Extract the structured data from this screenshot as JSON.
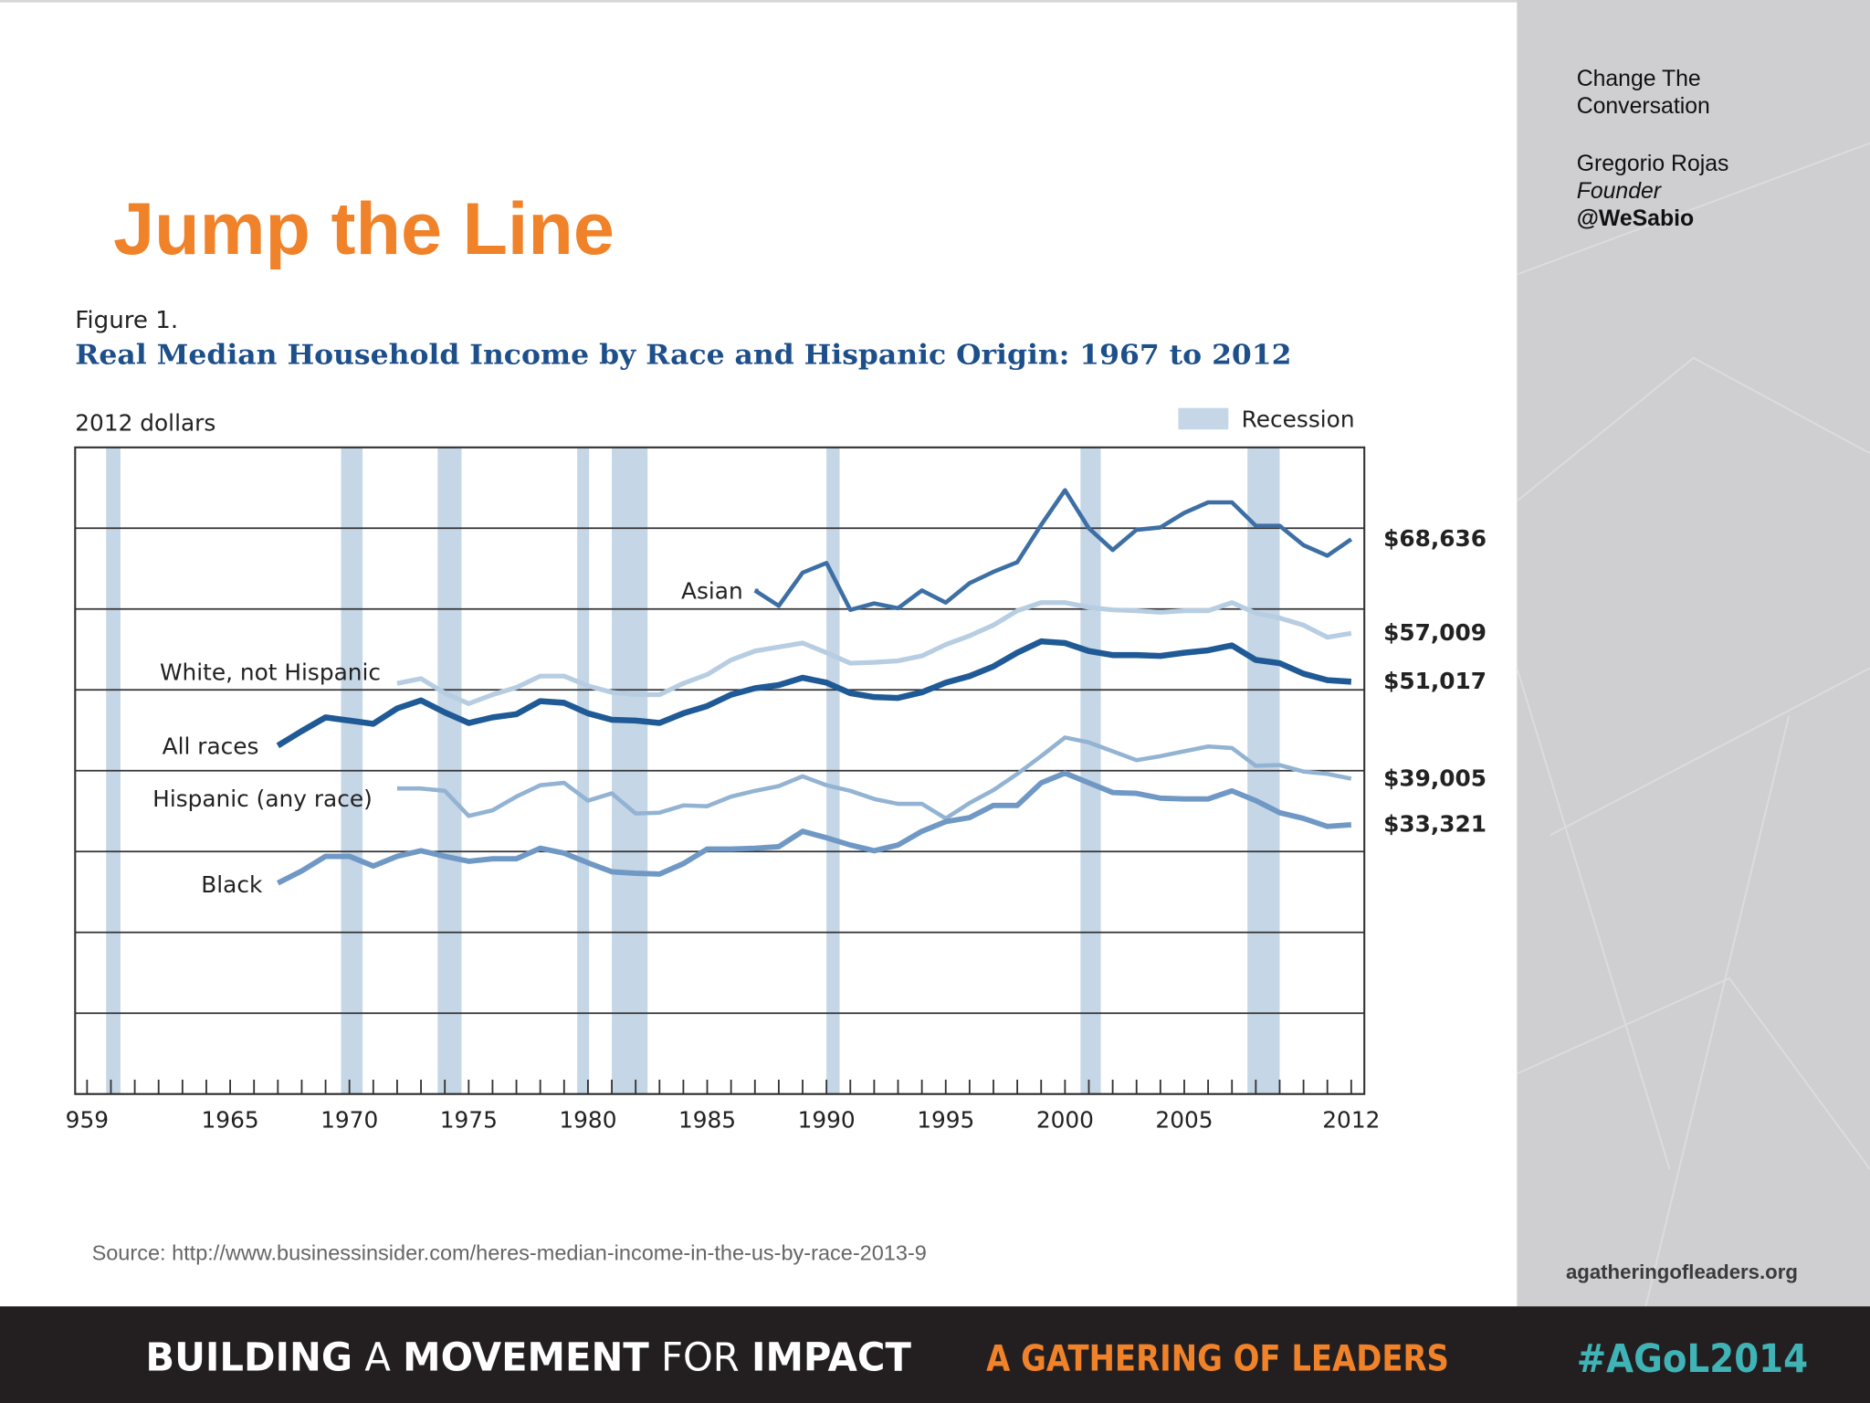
{
  "slide": {
    "title": "Jump the Line",
    "source": "Source: http://www.businessinsider.com/heres-median-income-in-the-us-by-race-2013-9"
  },
  "sidebar": {
    "org": [
      "Change The",
      "Conversation"
    ],
    "name": "Gregorio Rojas",
    "role": "Founder",
    "handle": "@WeSabio",
    "site": "agatheringofleaders.org"
  },
  "footer": {
    "tagline": [
      "BUILDING",
      "A",
      "MOVEMENT",
      "FOR",
      "IMPACT"
    ],
    "event": "A GATHERING OF LEADERS",
    "hashtag": "#AGoL2014"
  },
  "chart_data": {
    "type": "line",
    "figure_label": "Figure 1.",
    "title": "Real Median Household Income by Race and Hispanic Origin: 1967 to 2012",
    "y_label": "2012 dollars",
    "legend": {
      "recession": "Recession",
      "color": "#c5d6e6"
    },
    "recessions": [
      [
        1959.8,
        1960.4
      ],
      [
        1969.65,
        1970.55
      ],
      [
        1973.7,
        1974.7
      ],
      [
        1979.55,
        1980.05
      ],
      [
        1981.0,
        1982.5
      ],
      [
        1990.0,
        1990.55
      ],
      [
        2000.65,
        2001.5
      ],
      [
        2007.65,
        2009.0
      ]
    ],
    "x": [
      1967,
      1968,
      1969,
      1970,
      1971,
      1972,
      1973,
      1974,
      1975,
      1976,
      1977,
      1978,
      1979,
      1980,
      1981,
      1982,
      1983,
      1984,
      1985,
      1986,
      1987,
      1988,
      1989,
      1990,
      1991,
      1992,
      1993,
      1994,
      1995,
      1996,
      1997,
      1998,
      1999,
      2000,
      2001,
      2002,
      2003,
      2004,
      2005,
      2006,
      2007,
      2008,
      2009,
      2010,
      2011,
      2012
    ],
    "xlim": [
      1958.5,
      2012.55
    ],
    "xticks": [
      {
        "value": 1959,
        "label": "959"
      },
      1965,
      1970,
      1975,
      1980,
      1985,
      1990,
      1995,
      2000,
      2005,
      2012
    ],
    "xminorticks": [
      1959,
      1960,
      1961,
      1962,
      1963,
      1964,
      1965,
      1966,
      1967,
      1968,
      1969,
      1970,
      1971,
      1972,
      1973,
      1974,
      1975,
      1976,
      1977,
      1978,
      1979,
      1980,
      1981,
      1982,
      1983,
      1984,
      1985,
      1986,
      1987,
      1988,
      1989,
      1990,
      1991,
      1992,
      1993,
      1994,
      1995,
      1996,
      1997,
      1998,
      1999,
      2000,
      2001,
      2002,
      2003,
      2004,
      2005,
      2006,
      2007,
      2008,
      2009,
      2010,
      2011,
      2012
    ],
    "ylim": [
      0,
      80000
    ],
    "yticks": [
      0,
      10000,
      20000,
      30000,
      40000,
      50000,
      60000,
      70000,
      80000
    ],
    "grid": true,
    "series": [
      {
        "name": "Asian",
        "color": "#3d6fa5",
        "end_label": "$68,636",
        "values": [
          null,
          null,
          null,
          null,
          null,
          null,
          null,
          null,
          null,
          null,
          null,
          null,
          null,
          null,
          null,
          null,
          null,
          null,
          null,
          null,
          62300,
          60400,
          64500,
          65700,
          59900,
          60700,
          60100,
          62300,
          60800,
          63200,
          64600,
          65800,
          70400,
          74700,
          70000,
          67300,
          69800,
          70100,
          71900,
          73200,
          73200,
          70300,
          70300,
          67900,
          66600,
          68636
        ]
      },
      {
        "name": "White, not Hispanic",
        "color": "#b7cde2",
        "end_label": "$57,009",
        "values": [
          null,
          null,
          null,
          null,
          null,
          50800,
          51400,
          49600,
          48300,
          49400,
          50300,
          51700,
          51700,
          50500,
          49700,
          49400,
          49400,
          50800,
          51900,
          53700,
          54800,
          55300,
          55800,
          54600,
          53300,
          53400,
          53600,
          54200,
          55600,
          56700,
          58000,
          59800,
          60800,
          60800,
          60200,
          59900,
          59800,
          59600,
          59800,
          59800,
          60800,
          59500,
          58900,
          58000,
          56500,
          57009
        ]
      },
      {
        "name": "All races",
        "color": "#1f5a96",
        "end_label": "$51,017",
        "values": [
          43100,
          44900,
          46600,
          46200,
          45800,
          47700,
          48700,
          47200,
          45900,
          46600,
          47000,
          48600,
          48400,
          47100,
          46300,
          46200,
          45900,
          47100,
          48000,
          49400,
          50200,
          50600,
          51500,
          50900,
          49600,
          49100,
          49000,
          49700,
          50900,
          51700,
          52900,
          54600,
          56000,
          55800,
          54800,
          54300,
          54300,
          54200,
          54600,
          54900,
          55500,
          53700,
          53300,
          52000,
          51200,
          51017
        ]
      },
      {
        "name": "Hispanic (any race)",
        "color": "#93b3d3",
        "end_label": "$39,005",
        "values": [
          null,
          null,
          null,
          null,
          null,
          37800,
          37800,
          37500,
          34400,
          35100,
          36800,
          38200,
          38500,
          36300,
          37200,
          34700,
          34800,
          35700,
          35600,
          36800,
          37500,
          38100,
          39300,
          38200,
          37500,
          36500,
          35900,
          35900,
          34100,
          36000,
          37600,
          39600,
          41800,
          44100,
          43500,
          42400,
          41300,
          41800,
          42400,
          43000,
          42800,
          40600,
          40700,
          39900,
          39600,
          39005
        ]
      },
      {
        "name": "Black",
        "color": "#6f98c5",
        "end_label": "$33,321",
        "values": [
          26100,
          27600,
          29400,
          29400,
          28200,
          29400,
          30100,
          29400,
          28800,
          29100,
          29100,
          30400,
          29800,
          28600,
          27500,
          27300,
          27200,
          28500,
          30300,
          30300,
          30400,
          30600,
          32500,
          31700,
          30800,
          30100,
          30800,
          32500,
          33700,
          34200,
          35700,
          35700,
          38500,
          39700,
          38500,
          37300,
          37200,
          36600,
          36500,
          36500,
          37500,
          36300,
          34800,
          34100,
          33100,
          33321
        ]
      }
    ]
  }
}
